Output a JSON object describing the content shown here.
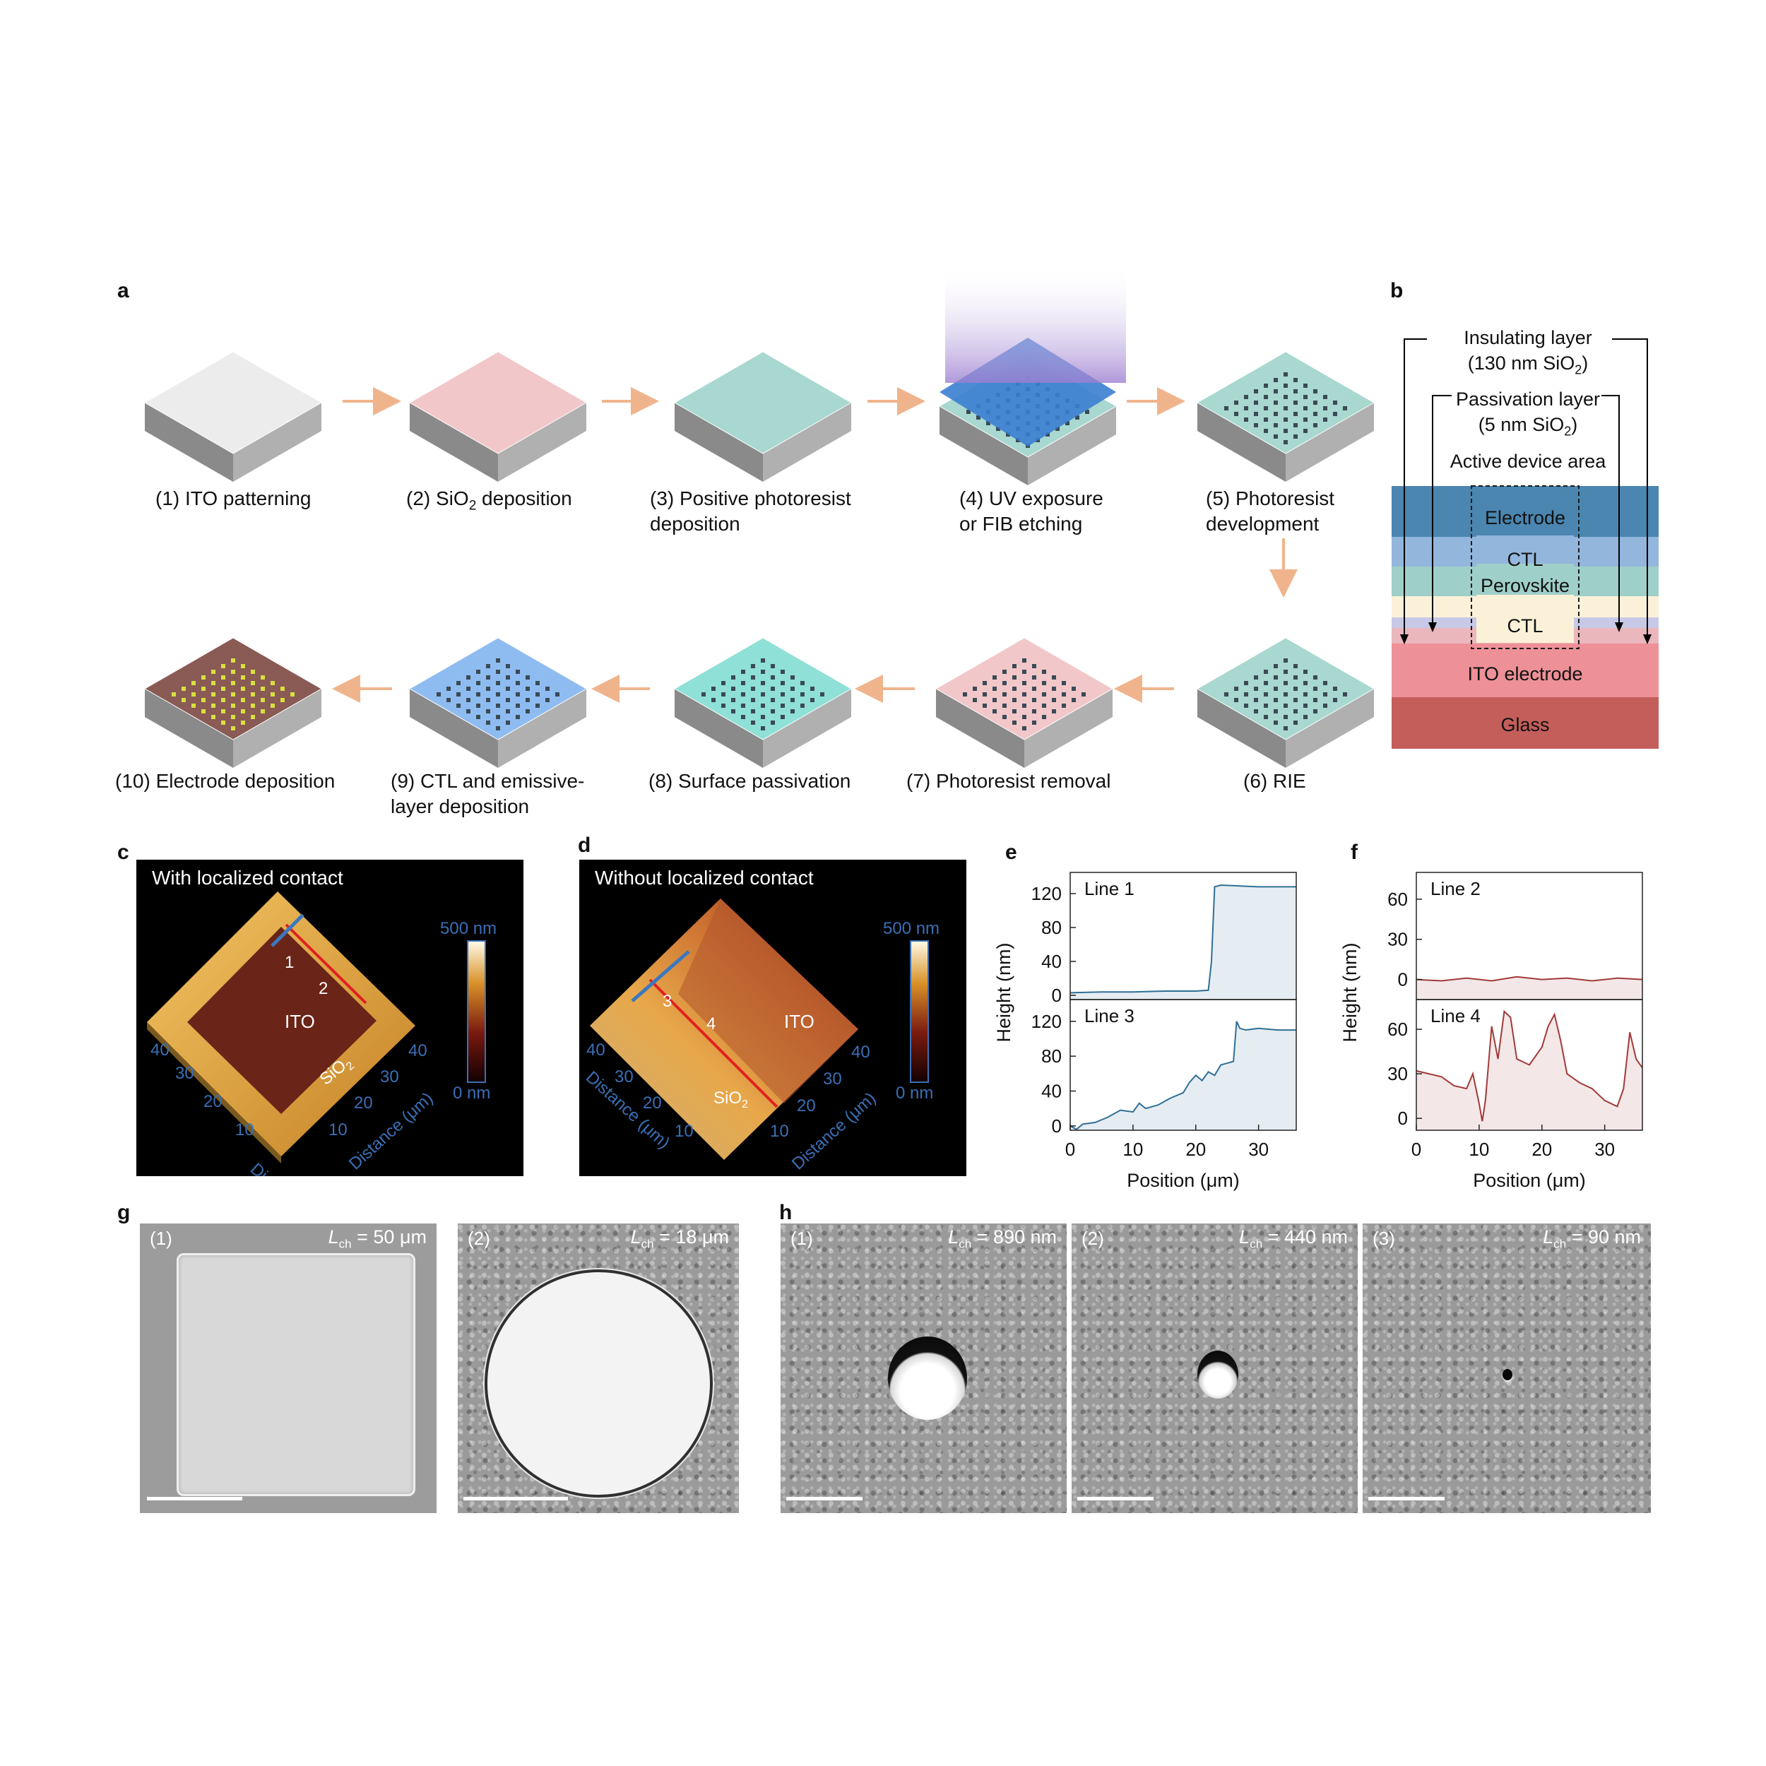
{
  "panel_labels": {
    "a": "a",
    "b": "b",
    "c": "c",
    "d": "d",
    "e": "e",
    "f": "f",
    "g": "g",
    "h": "h"
  },
  "steps": [
    {
      "l1": "(1) ITO patterning",
      "l2": ""
    },
    {
      "l1": "(2) SiO",
      "sub": "2",
      "l1b": " deposition",
      "l2": ""
    },
    {
      "l1": "(3) Positive photoresist",
      "l2": "deposition"
    },
    {
      "l1": "(4) UV exposure",
      "l2": "or FIB etching"
    },
    {
      "l1": "(5) Photoresist",
      "l2": "development"
    },
    {
      "l1": "(6) RIE",
      "l2": ""
    },
    {
      "l1": "(7) Photoresist removal",
      "l2": ""
    },
    {
      "l1": "(8) Surface passivation",
      "l2": ""
    },
    {
      "l1": "(9) CTL and emissive-",
      "l2": "layer deposition"
    },
    {
      "l1": "(10) Electrode deposition",
      "l2": ""
    }
  ],
  "panel_b": {
    "insulating": "Insulating layer",
    "insulating_detail_pre": "(130 nm SiO",
    "insulating_detail_sub": "2",
    "insulating_detail_post": ")",
    "passivation": "Passivation layer",
    "passivation_detail_pre": "(5 nm SiO",
    "passivation_detail_sub": "2",
    "passivation_detail_post": ")",
    "active": "Active device area",
    "layers": [
      "Electrode",
      "CTL",
      "Perovskite",
      "CTL",
      "ITO electrode",
      "Glass"
    ]
  },
  "panel_c": {
    "title": "With localized contact",
    "scale_top": "500 nm",
    "scale_bottom": "0 nm",
    "ito": "ITO",
    "sio2_pre": "SiO",
    "sio2_sub": "2",
    "line_a": "1",
    "line_b": "2",
    "axis": "Distance (μm)",
    "ticks": [
      "10",
      "20",
      "30",
      "40"
    ]
  },
  "panel_d": {
    "title": "Without localized contact",
    "scale_top": "500 nm",
    "scale_bottom": "0 nm",
    "ito": "ITO",
    "sio2_pre": "SiO",
    "sio2_sub": "2",
    "line_a": "3",
    "line_b": "4",
    "axis": "Distance (μm)",
    "ticks": [
      "10",
      "20",
      "30",
      "40"
    ]
  },
  "chart_data": [
    {
      "type": "line",
      "panel": "e",
      "series": [
        {
          "name": "Line 1",
          "color": "#2f6f96",
          "x": [
            0,
            5,
            10,
            15,
            20,
            22,
            22.5,
            23,
            24,
            30,
            36
          ],
          "y": [
            3,
            4,
            4,
            5,
            5,
            6,
            40,
            128,
            130,
            128,
            128
          ]
        }
      ],
      "xlabel": "Position (μm)",
      "ylabel": "Height (nm)",
      "xlim": [
        0,
        36
      ],
      "ylim": [
        -5,
        145
      ],
      "yticks": [
        0,
        40,
        80,
        120
      ],
      "xticks": [
        0,
        10,
        20,
        30
      ]
    },
    {
      "type": "line",
      "panel": "e",
      "series": [
        {
          "name": "Line 3",
          "color": "#2f6f96",
          "x": [
            0,
            1,
            2,
            4,
            6,
            8,
            10,
            11,
            12,
            14,
            16,
            18,
            19,
            20,
            21,
            22,
            23,
            24,
            25,
            26,
            26.5,
            27,
            28,
            30,
            33,
            36
          ],
          "y": [
            0,
            -4,
            2,
            4,
            10,
            18,
            16,
            26,
            20,
            24,
            32,
            38,
            50,
            58,
            52,
            62,
            58,
            70,
            72,
            74,
            120,
            112,
            110,
            112,
            110,
            110
          ]
        }
      ],
      "xlabel": "Position (μm)",
      "ylabel": "Height (nm)",
      "xlim": [
        0,
        36
      ],
      "ylim": [
        -5,
        145
      ],
      "yticks": [
        0,
        40,
        80,
        120
      ],
      "xticks": [
        0,
        10,
        20,
        30
      ]
    },
    {
      "type": "line",
      "panel": "f",
      "series": [
        {
          "name": "Line 2",
          "color": "#a23a3a",
          "x": [
            0,
            4,
            8,
            12,
            16,
            20,
            24,
            28,
            32,
            36
          ],
          "y": [
            0,
            -1,
            1,
            -1,
            2,
            0,
            1,
            -1,
            1,
            0
          ]
        }
      ],
      "xlabel": "Position (μm)",
      "ylabel": "Height (nm)",
      "xlim": [
        0,
        36
      ],
      "ylim": [
        -15,
        80
      ],
      "yticks": [
        0,
        30,
        60
      ],
      "xticks": [
        0,
        10,
        20,
        30
      ]
    },
    {
      "type": "line",
      "panel": "f",
      "series": [
        {
          "name": "Line 4",
          "color": "#a23a3a",
          "x": [
            0,
            2,
            4,
            6,
            8,
            9,
            10,
            10.5,
            11,
            12,
            13,
            14,
            15,
            16,
            18,
            20,
            21,
            22,
            23,
            24,
            26,
            28,
            30,
            32,
            33,
            34,
            35,
            36
          ],
          "y": [
            32,
            30,
            28,
            22,
            20,
            30,
            10,
            -2,
            12,
            62,
            40,
            72,
            68,
            40,
            36,
            48,
            62,
            70,
            52,
            30,
            24,
            20,
            12,
            8,
            20,
            58,
            40,
            34
          ]
        }
      ],
      "xlabel": "Position (μm)",
      "ylabel": "Height (nm)",
      "xlim": [
        0,
        36
      ],
      "ylim": [
        -8,
        80
      ],
      "yticks": [
        0,
        30,
        60
      ],
      "xticks": [
        0,
        10,
        20,
        30
      ]
    }
  ],
  "panel_g": [
    {
      "idx": "(1)",
      "lch_sym": "L",
      "lch_sub": "ch",
      "lch_val": " = 50 μm"
    },
    {
      "idx": "(2)",
      "lch_sym": "L",
      "lch_sub": "ch",
      "lch_val": " = 18 μm"
    }
  ],
  "panel_h": [
    {
      "idx": "(1)",
      "lch_sym": "L",
      "lch_sub": "ch",
      "lch_val": " = 890 nm"
    },
    {
      "idx": "(2)",
      "lch_sym": "L",
      "lch_sub": "ch",
      "lch_val": " = 440 nm"
    },
    {
      "idx": "(3)",
      "lch_sym": "L",
      "lch_sub": "ch",
      "lch_val": " = 90 nm"
    }
  ],
  "colors": {
    "arrow": "#f0b48c",
    "line_blue": "#2f6f96",
    "line_red": "#a23a3a",
    "afm_axis": "#3a6fb5"
  }
}
